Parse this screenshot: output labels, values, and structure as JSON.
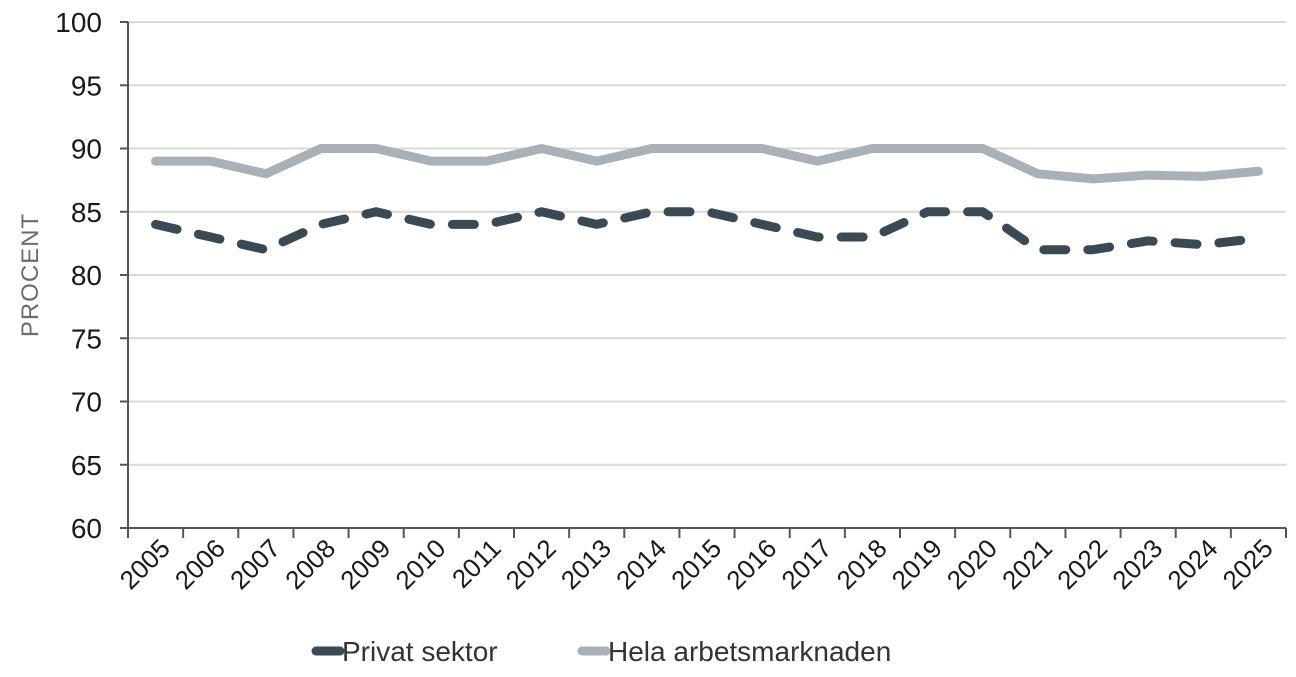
{
  "chart_data": {
    "type": "line",
    "title": "",
    "xlabel": "",
    "ylabel": "PROCENT",
    "ylim": [
      60,
      100
    ],
    "yticks": [
      60,
      65,
      70,
      75,
      80,
      85,
      90,
      95,
      100
    ],
    "categories": [
      "2005",
      "2006",
      "2007",
      "2008",
      "2009",
      "2010",
      "2011",
      "2012",
      "2013",
      "2014",
      "2015",
      "2016",
      "2017",
      "2018",
      "2019",
      "2020",
      "2021",
      "2022",
      "2023",
      "2024",
      "2025"
    ],
    "grid": "horizontal",
    "legend_position": "bottom",
    "series": [
      {
        "name": "Privat sektor",
        "style": "dashed",
        "color": "#3a4a55",
        "values": [
          84,
          83,
          82,
          84,
          85,
          84,
          84,
          85,
          84,
          85,
          85,
          84,
          83,
          83,
          85,
          85,
          82,
          82,
          82.7,
          82.4,
          82.9
        ]
      },
      {
        "name": "Hela arbetsmarknaden",
        "style": "solid",
        "color": "#a9b1b8",
        "values": [
          89,
          89,
          88,
          90,
          90,
          89,
          89,
          90,
          89,
          90,
          90,
          90,
          89,
          90,
          90,
          90,
          88,
          87.6,
          87.9,
          87.8,
          88.2
        ]
      }
    ]
  }
}
